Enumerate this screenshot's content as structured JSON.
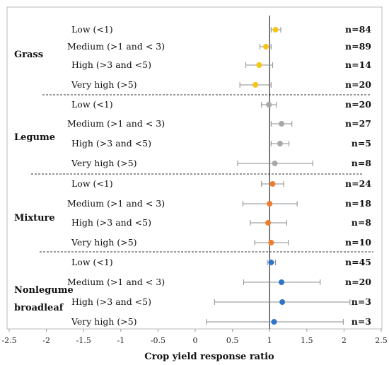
{
  "chart_data": {
    "type": "scatter",
    "title": "",
    "xlabel": "Crop yield response ratio",
    "ylabel": "",
    "xlim": [
      -2.5,
      2.5
    ],
    "x_ticks": [
      "-2.5",
      "-2",
      "-1.5",
      "-1",
      "-0.5",
      "0",
      "0.5",
      "1",
      "1.5",
      "2",
      "2.5"
    ],
    "reference_line_x": 1,
    "grid": false,
    "groups": [
      {
        "name": "Grass",
        "color": "#f5c518",
        "items": [
          {
            "label": "Low (<1)",
            "mean": 1.08,
            "lo": 1.02,
            "hi": 1.15,
            "n": "n=84"
          },
          {
            "label": "Medium (>1 and < 3)",
            "mean": 0.95,
            "lo": 0.87,
            "hi": 1.02,
            "n": "n=89"
          },
          {
            "label": "High (>3 and <5)",
            "mean": 0.86,
            "lo": 0.68,
            "hi": 1.04,
            "n": "n=14"
          },
          {
            "label": "Very high (>5)",
            "mean": 0.81,
            "lo": 0.6,
            "hi": 1.02,
            "n": "n=20"
          }
        ]
      },
      {
        "name": "Legume",
        "color": "#a8a8a8",
        "items": [
          {
            "label": "Low (<1)",
            "mean": 0.99,
            "lo": 0.89,
            "hi": 1.09,
            "n": "n=20"
          },
          {
            "label": "Medium (>1 and < 3)",
            "mean": 1.16,
            "lo": 1.02,
            "hi": 1.3,
            "n": "n=27"
          },
          {
            "label": "High (>3 and <5)",
            "mean": 1.14,
            "lo": 1.02,
            "hi": 1.26,
            "n": "n=5"
          },
          {
            "label": "Very high (>5)",
            "mean": 1.07,
            "lo": 0.57,
            "hi": 1.58,
            "n": "n=8"
          }
        ]
      },
      {
        "name": "Mixture",
        "color": "#ed7d31",
        "items": [
          {
            "label": "Low (<1)",
            "mean": 1.04,
            "lo": 0.89,
            "hi": 1.19,
            "n": "n=24"
          },
          {
            "label": "Medium (>1 and < 3)",
            "mean": 1.0,
            "lo": 0.64,
            "hi": 1.37,
            "n": "n=18"
          },
          {
            "label": "High (>3 and <5)",
            "mean": 0.98,
            "lo": 0.74,
            "hi": 1.23,
            "n": "n=8"
          },
          {
            "label": "Very high (>5)",
            "mean": 1.02,
            "lo": 0.8,
            "hi": 1.25,
            "n": "n=10"
          }
        ]
      },
      {
        "name": "Nonlegume broadleaf",
        "name_lines": [
          "Nonlegume",
          "broadleaf"
        ],
        "color": "#2e75c8",
        "items": [
          {
            "label": "Low (<1)",
            "mean": 1.02,
            "lo": 0.97,
            "hi": 1.08,
            "n": "n=45"
          },
          {
            "label": "Medium (>1 and < 3)",
            "mean": 1.16,
            "lo": 0.65,
            "hi": 1.68,
            "n": "n=20"
          },
          {
            "label": "High (>3 and <5)",
            "mean": 1.17,
            "lo": 0.26,
            "hi": 2.08,
            "n": "n=3"
          },
          {
            "label": "Very high (>5)",
            "mean": 1.06,
            "lo": 0.15,
            "hi": 1.99,
            "n": "n=3"
          }
        ]
      }
    ]
  }
}
